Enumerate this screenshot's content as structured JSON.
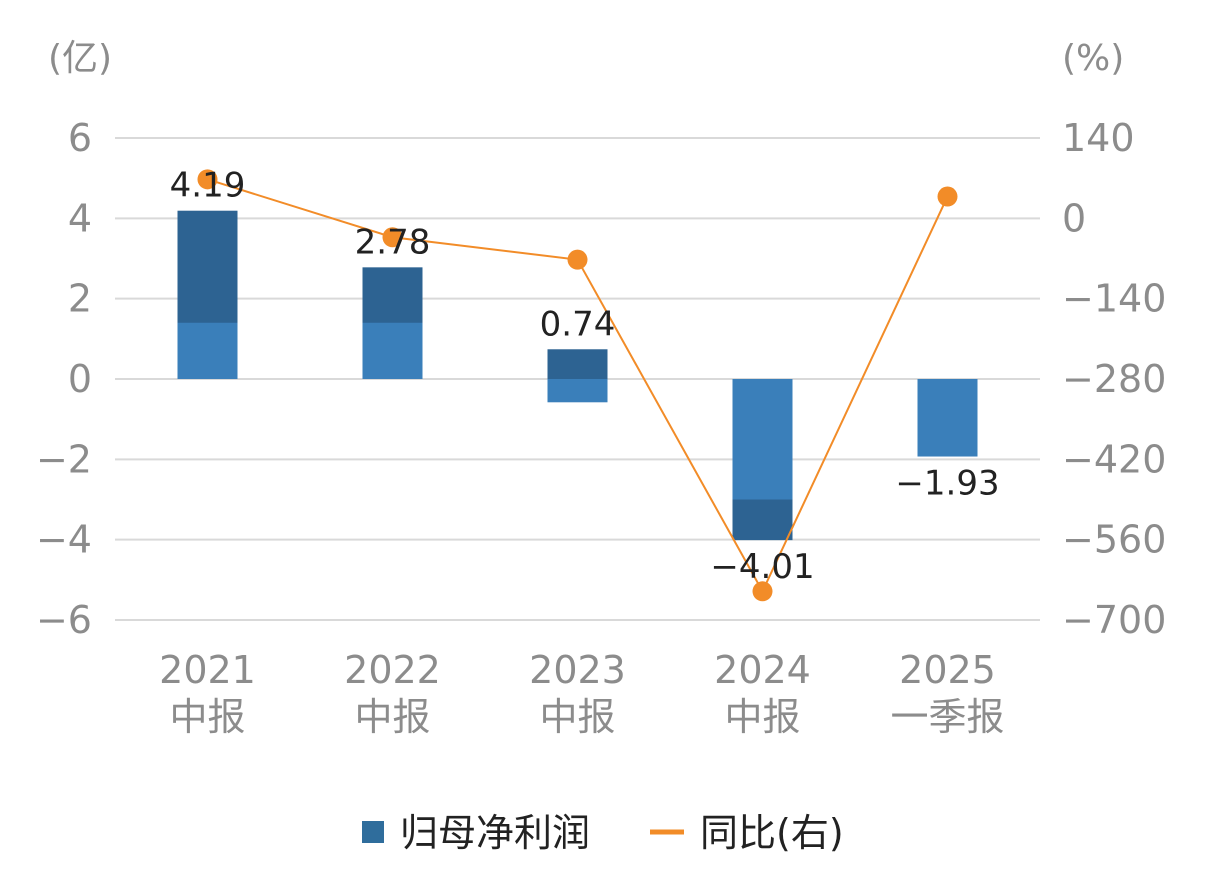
{
  "chart_data": {
    "type": "bar+line",
    "categories": [
      [
        "2021",
        "中报"
      ],
      [
        "2022",
        "中报"
      ],
      [
        "2023",
        "中报"
      ],
      [
        "2024",
        "中报"
      ],
      [
        "2025",
        "一季报"
      ]
    ],
    "series": [
      {
        "name": "归母净利润",
        "type": "bar",
        "axis": "left",
        "values": [
          4.19,
          2.78,
          0.74,
          -4.01,
          -1.93
        ],
        "labels": [
          "4.19",
          "2.78",
          "0.74",
          "-4.01",
          "-1.93"
        ],
        "color": "#2f6d9c"
      },
      {
        "name": "同比(右)",
        "type": "line",
        "axis": "right",
        "values": [
          68,
          -33,
          -72,
          -650,
          38
        ],
        "color": "#f28c28"
      }
    ],
    "left_axis": {
      "unit": "(亿)",
      "ticks": [
        6,
        4,
        2,
        0,
        -2,
        -4,
        -6
      ],
      "tick_labels": [
        "6",
        "4",
        "2",
        "0",
        "-2",
        "-4",
        "-6"
      ],
      "range": [
        -6,
        6
      ]
    },
    "right_axis": {
      "unit": "(%)",
      "ticks": [
        140,
        0,
        -140,
        -280,
        -420,
        -560,
        -700
      ],
      "tick_labels": [
        "140",
        "0",
        "-140",
        "-280",
        "-420",
        "-560",
        "-700"
      ],
      "range": [
        -700,
        140
      ]
    },
    "grid": true,
    "legend_position": "bottom",
    "legend": [
      {
        "label": "归母净利润",
        "kind": "square",
        "color": "#2f6d9c"
      },
      {
        "label": "同比(右)",
        "kind": "line",
        "color": "#f28c28"
      }
    ]
  }
}
